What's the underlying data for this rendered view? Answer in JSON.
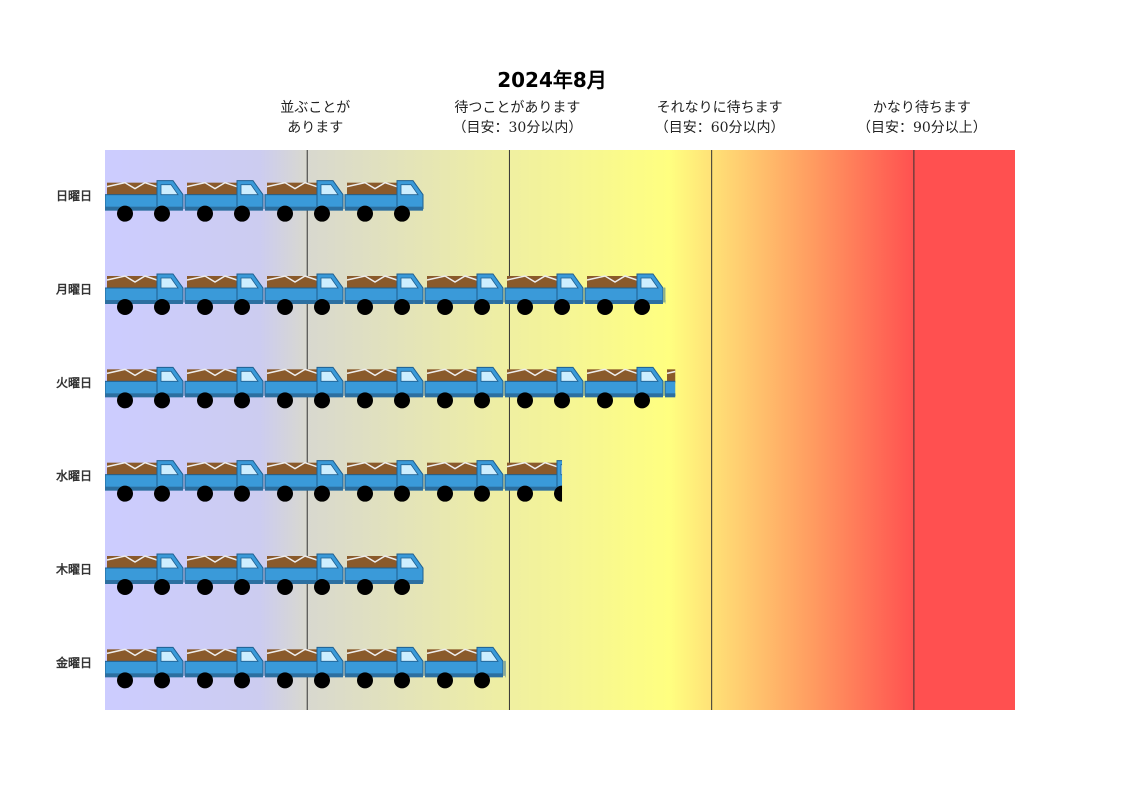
{
  "chart_data": {
    "type": "pictograph",
    "title": "2024年8月",
    "categories": [
      "日曜日",
      "月曜日",
      "火曜日",
      "水曜日",
      "木曜日",
      "金曜日"
    ],
    "values": [
      1.58,
      2.77,
      2.82,
      2.26,
      1.58,
      1.98
    ],
    "xlim": [
      0,
      4.5
    ],
    "xticks": [
      {
        "value": 1,
        "label": "並ぶことが\nあります"
      },
      {
        "value": 2,
        "label": "待つことがあります\n（目安：30分以内）"
      },
      {
        "value": 3,
        "label": "それなりに待ちます\n（目安：60分以内）"
      },
      {
        "value": 4,
        "label": "かなり待ちます\n（目安：90分以上）"
      }
    ],
    "color": "#3a9ad9",
    "grid": true
  }
}
